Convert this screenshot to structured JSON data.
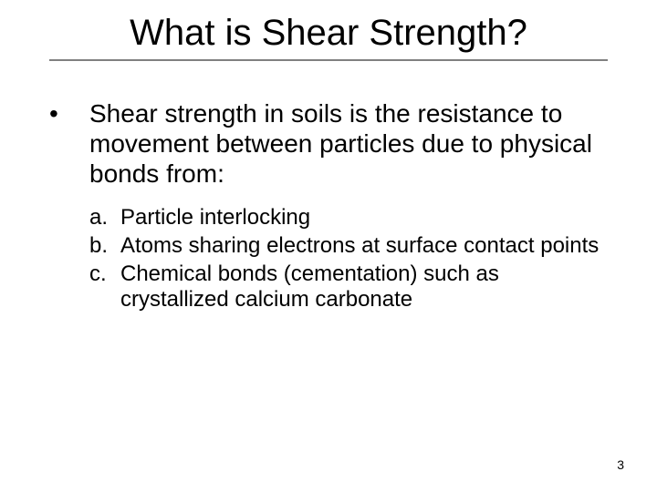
{
  "slide": {
    "title": "What is Shear Strength?",
    "title_fontsize": 40,
    "title_color": "#000000",
    "rule_color": "#808080",
    "background_color": "#ffffff",
    "body_fontsize": 28,
    "sublist_fontsize": 24,
    "bullet": {
      "mark": "•",
      "text": "Shear strength in soils is the resistance to movement between particles due to physical bonds from:"
    },
    "subitems": [
      {
        "mark": "a.",
        "text": "Particle interlocking"
      },
      {
        "mark": "b.",
        "text": "Atoms sharing electrons at surface contact points"
      },
      {
        "mark": "c.",
        "text": "Chemical bonds (cementation) such as crystallized calcium carbonate"
      }
    ],
    "page_number": "3",
    "page_number_fontsize": 14
  }
}
